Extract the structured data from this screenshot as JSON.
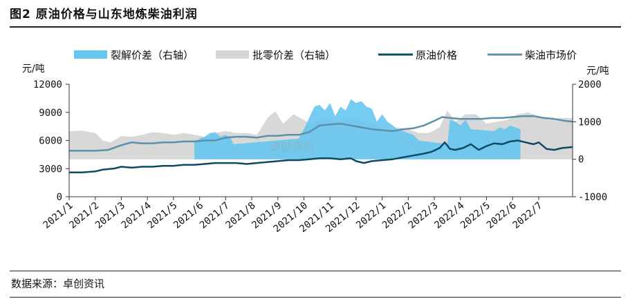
{
  "title": "图2 原油价格与山东地炼柴油利润",
  "source": "数据来源：卓创资讯",
  "watermark": "卓创资讯",
  "chart_data": {
    "type": "line",
    "left_unit": "元/吨",
    "right_unit": "元/吨",
    "y_left": {
      "min": 0,
      "max": 12000,
      "ticks": [
        0,
        3000,
        6000,
        9000,
        12000
      ]
    },
    "y_right": {
      "min": -1000,
      "max": 2000,
      "ticks": [
        -1000,
        0,
        1000,
        2000
      ]
    },
    "x_tick_labels": [
      "2021/1",
      "2021/2",
      "2021/3",
      "2021/4",
      "2021/5",
      "2021/6",
      "2021/7",
      "2021/8",
      "2021/9",
      "2021/10",
      "2021/11",
      "2021/12",
      "2022/1",
      "2022/2",
      "2022/3",
      "2022/4",
      "2022/5",
      "2022/6",
      "2022/7"
    ],
    "x_range": [
      0,
      19.3
    ],
    "legend": [
      {
        "name": "裂解价差（右轴）",
        "kind": "area",
        "color": "#66c7ee"
      },
      {
        "name": "批零价差（右轴）",
        "kind": "area",
        "color": "#d6d6d6"
      },
      {
        "name": "原油价格",
        "kind": "line",
        "color": "#0c4a63"
      },
      {
        "name": "柴油市场价",
        "kind": "line",
        "color": "#5b8fab"
      }
    ],
    "series": [
      {
        "name": "批零价差（右轴）",
        "axis": "right",
        "type": "area",
        "color": "#d6d6d6",
        "x": [
          0,
          0.5,
          1,
          1.3,
          1.6,
          2,
          2.4,
          2.8,
          3.2,
          3.6,
          4,
          4.4,
          4.8,
          5.2,
          5.6,
          6,
          6.4,
          6.8,
          7.2,
          7.6,
          7.9,
          8.2,
          8.6,
          9,
          9.3,
          9.6,
          10,
          10.3,
          10.6,
          11,
          11.4,
          11.8,
          12.2,
          12.6,
          13,
          13.4,
          13.8,
          14.2,
          14.5,
          14.8,
          15.2,
          15.6,
          16,
          16.4,
          16.8,
          17.2,
          17.6,
          18,
          18.4,
          18.8,
          19.3
        ],
        "values": [
          750,
          760,
          700,
          500,
          450,
          620,
          600,
          650,
          720,
          700,
          650,
          700,
          650,
          600,
          700,
          750,
          700,
          700,
          650,
          1100,
          1280,
          950,
          1200,
          1050,
          900,
          1050,
          1050,
          1000,
          1100,
          1100,
          950,
          900,
          700,
          850,
          800,
          700,
          700,
          850,
          1300,
          1000,
          1200,
          1200,
          950,
          1000,
          1050,
          1200,
          1250,
          1150,
          1050,
          1100,
          1100
        ]
      },
      {
        "name": "裂解价差（右轴）",
        "axis": "right",
        "type": "area",
        "color": "#66c7ee",
        "x": [
          4.8,
          5,
          5.2,
          5.4,
          5.6,
          5.8,
          6,
          6.2,
          6.3,
          8.8,
          9,
          9.2,
          9.4,
          9.6,
          9.8,
          10,
          10.2,
          10.4,
          10.6,
          10.8,
          11,
          11.2,
          11.4,
          11.6,
          11.8,
          12,
          12.2,
          12.4,
          12.6,
          12.8,
          13,
          13.2,
          13.4,
          14.5,
          14.6,
          14.8,
          15,
          15.2,
          15.4,
          16.3,
          16.5,
          16.7,
          16.9,
          17.1,
          17.3
        ],
        "values": [
          450,
          550,
          600,
          700,
          720,
          600,
          650,
          550,
          400,
          550,
          800,
          1100,
          1400,
          1450,
          1300,
          1500,
          1150,
          1400,
          1300,
          1600,
          1500,
          1550,
          1400,
          1350,
          1000,
          1200,
          1000,
          900,
          800,
          750,
          700,
          650,
          500,
          400,
          1050,
          1000,
          900,
          1050,
          800,
          750,
          850,
          800,
          900,
          850,
          800
        ]
      },
      {
        "name": "原油价格",
        "axis": "left",
        "type": "line",
        "color": "#0c4a63",
        "width": 2.5,
        "x": [
          0,
          0.5,
          1,
          1.3,
          1.7,
          2,
          2.4,
          2.8,
          3.2,
          3.6,
          4,
          4.4,
          4.8,
          5.2,
          5.6,
          6,
          6.4,
          6.8,
          7.2,
          7.6,
          8,
          8.4,
          8.8,
          9.2,
          9.6,
          10,
          10.4,
          10.8,
          11,
          11.3,
          11.6,
          12,
          12.4,
          12.8,
          13.2,
          13.6,
          13.9,
          14.2,
          14.4,
          14.6,
          14.8,
          15.1,
          15.4,
          15.7,
          16,
          16.3,
          16.6,
          16.9,
          17.2,
          17.5,
          17.8,
          18,
          18.3,
          18.6,
          18.9,
          19.3
        ],
        "values": [
          2600,
          2600,
          2700,
          2900,
          3000,
          3200,
          3100,
          3200,
          3200,
          3300,
          3300,
          3400,
          3400,
          3500,
          3600,
          3600,
          3600,
          3500,
          3600,
          3700,
          3800,
          3900,
          3900,
          4000,
          4100,
          4100,
          4000,
          4100,
          3800,
          3600,
          3800,
          3900,
          4000,
          4200,
          4400,
          4600,
          4800,
          5200,
          5800,
          5100,
          5000,
          5200,
          5600,
          5000,
          5400,
          5700,
          5600,
          5900,
          6000,
          5800,
          5600,
          5800,
          5100,
          5000,
          5200,
          5300
        ]
      },
      {
        "name": "柴油市场价",
        "axis": "left",
        "type": "line",
        "color": "#5b8fab",
        "width": 2.5,
        "x": [
          0,
          0.5,
          1,
          1.5,
          2,
          2.4,
          2.8,
          3.2,
          3.6,
          4,
          4.4,
          4.8,
          5.2,
          5.6,
          6,
          6.4,
          6.8,
          7.2,
          7.6,
          8,
          8.4,
          8.8,
          9.2,
          9.6,
          10,
          10.4,
          10.8,
          11.2,
          11.6,
          12,
          12.4,
          12.8,
          13.2,
          13.6,
          14,
          14.3,
          14.6,
          15,
          15.4,
          15.8,
          16.2,
          16.6,
          17,
          17.4,
          17.8,
          18.2,
          18.6,
          19,
          19.3
        ],
        "values": [
          4900,
          4900,
          4900,
          5000,
          5500,
          5800,
          5700,
          5700,
          5800,
          5800,
          5900,
          5900,
          6000,
          6000,
          6300,
          6400,
          6400,
          6300,
          6500,
          6500,
          6600,
          6600,
          6900,
          7600,
          7700,
          7800,
          7600,
          7400,
          7200,
          7100,
          7000,
          7200,
          7300,
          7600,
          8100,
          8500,
          8400,
          8300,
          8300,
          8300,
          8400,
          8400,
          8500,
          8600,
          8600,
          8400,
          8300,
          8100,
          8000
        ]
      }
    ]
  }
}
